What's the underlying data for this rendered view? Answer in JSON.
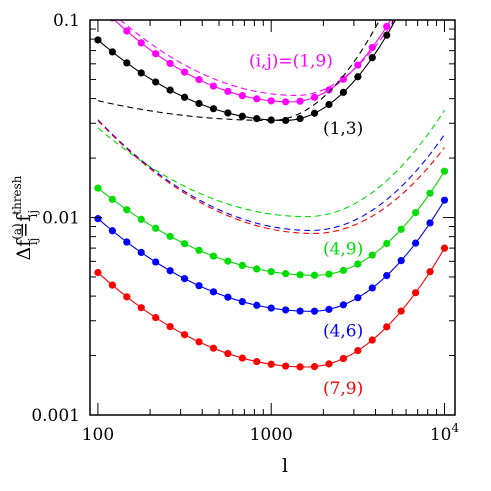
{
  "chart_data": {
    "type": "line",
    "title": "",
    "xlabel": "l",
    "ylabel_main": "Δf",
    "ylabel_sup": "(a)",
    "ylabel_sub": "ij",
    "ylabel_eq": "=f",
    "ylabel_sup2": "thresh",
    "ylabel_sub2": "ij",
    "xscale": "log",
    "yscale": "log",
    "xlim": [
      90,
      11500
    ],
    "ylim": [
      0.001,
      0.1
    ],
    "grid": false,
    "legend": "none",
    "x_ticks": [
      {
        "value": 100,
        "label": "100"
      },
      {
        "value": 1000,
        "label": "1000"
      },
      {
        "value": 10000,
        "label": "10",
        "sup": "4"
      }
    ],
    "y_ticks": [
      {
        "value": 0.001,
        "label": "0.001"
      },
      {
        "value": 0.01,
        "label": "0.01"
      },
      {
        "value": 0.1,
        "label": "0.1"
      }
    ],
    "series": [
      {
        "color": "#ff00ff",
        "style": "dots-solid",
        "ref": {
          "a": 0.0385,
          "b": 0.4,
          "c": 1.25,
          "x0": 1300
        }
      },
      {
        "color": "#000000",
        "style": "dots-solid",
        "ref": {
          "a": 0.031,
          "b": 0.35,
          "c": 1.25,
          "x0": 1200
        }
      },
      {
        "color": "#00dd00",
        "style": "dots-solid",
        "ref": {
          "a": 0.0051,
          "b": 0.28,
          "c": 0.95,
          "x0": 1800
        }
      },
      {
        "color": "#0000ff",
        "style": "dots-solid",
        "ref": {
          "a": 0.00335,
          "b": 0.31,
          "c": 0.95,
          "x0": 1700
        }
      },
      {
        "color": "#ff0000",
        "style": "dots-solid",
        "ref": {
          "a": 0.00175,
          "b": 0.33,
          "c": 0.95,
          "x0": 1600
        }
      },
      {
        "color": "#ff00ff",
        "style": "dashed",
        "ref": {
          "a": 0.0415,
          "b": 0.37,
          "c": 1.2,
          "x0": 1400
        }
      },
      {
        "color": "#000000",
        "style": "dashed",
        "ref": {
          "a": 0.031,
          "b": 0.1,
          "c": 1.3,
          "x0": 1000
        }
      },
      {
        "color": "#00dd00",
        "style": "dashed",
        "ref": {
          "a": 0.0101,
          "b": 0.31,
          "c": 0.85,
          "x0": 1600
        }
      },
      {
        "color": "#0000ff",
        "style": "dashed",
        "ref": {
          "a": 0.0086,
          "b": 0.37,
          "c": 0.82,
          "x0": 1700
        }
      },
      {
        "color": "#ff0000",
        "style": "dashed",
        "ref": {
          "a": 0.0083,
          "b": 0.37,
          "c": 0.76,
          "x0": 1750
        }
      }
    ],
    "annotations": [
      {
        "text": "(i,j)=(1,9)",
        "color": "#ff00ff",
        "x": 1300,
        "y": 0.058
      },
      {
        "text": "(1,3)",
        "color": "#000000",
        "x": 2600,
        "y": 0.0265
      },
      {
        "text": "(4,9)",
        "color": "#00dd00",
        "x": 2600,
        "y": 0.0065
      },
      {
        "text": "(4,6)",
        "color": "#0000ff",
        "x": 2600,
        "y": 0.0025
      },
      {
        "text": "(7,9)",
        "color": "#ff0000",
        "x": 2600,
        "y": 0.00128
      }
    ]
  }
}
